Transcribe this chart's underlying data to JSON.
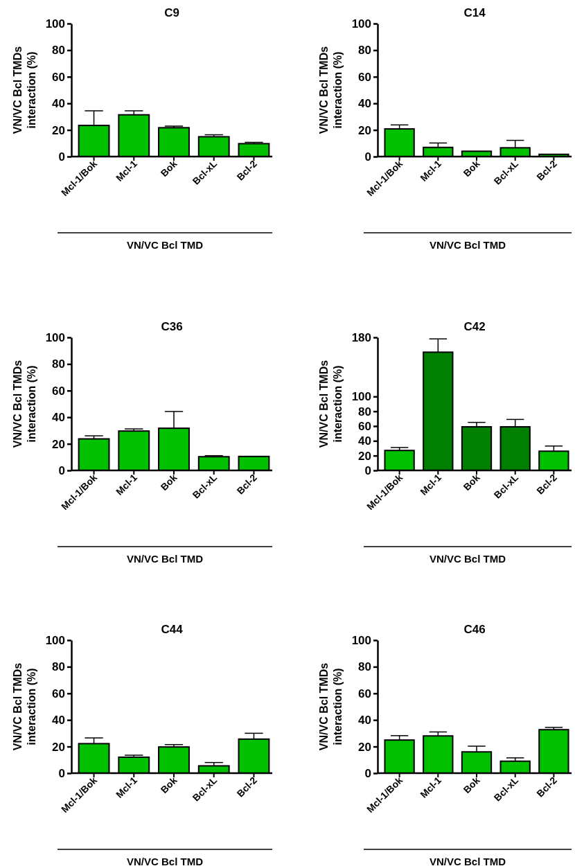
{
  "chart_data": [
    {
      "type": "bar",
      "title": "C9",
      "ylabel": "VN/VC Bcl TMDs interaction (%)",
      "xlabel": "VN/VC Bcl TMD",
      "categories": [
        "Mcl-1/Bok",
        "Mcl-1",
        "Bok",
        "Bcl-xL",
        "Bcl-2"
      ],
      "values": [
        23.4,
        31.4,
        21.7,
        14.9,
        9.7
      ],
      "errors": [
        11,
        3,
        1.2,
        1.5,
        1
      ],
      "colors": [
        "#00c000",
        "#00c000",
        "#00c000",
        "#00c000",
        "#00c000"
      ],
      "ylim": [
        0,
        100
      ],
      "yticks": [
        0,
        20,
        40,
        60,
        80,
        100
      ]
    },
    {
      "type": "bar",
      "title": "C14",
      "ylabel": "VN/VC Bcl TMDs interaction (%)",
      "xlabel": "VN/VC Bcl TMD",
      "categories": [
        "Mcl-1/Bok",
        "Mcl-1",
        "Bok",
        "Bcl-xL",
        "Bcl-2"
      ],
      "values": [
        20.8,
        6.9,
        4,
        6.6,
        1.7
      ],
      "errors": [
        3,
        3.3,
        null,
        5.6,
        null
      ],
      "colors": [
        "#00c000",
        "#00c000",
        "#00c000",
        "#00c000",
        "#00c000"
      ],
      "ylim": [
        0,
        100
      ],
      "yticks": [
        0,
        20,
        40,
        60,
        80,
        100
      ]
    },
    {
      "type": "bar",
      "title": "C36",
      "ylabel": "VN/VC Bcl TMDs interaction (%)",
      "xlabel": "VN/VC Bcl TMD",
      "categories": [
        "Mcl-1/Bok",
        "Mcl-1",
        "Bok",
        "Bcl-xL",
        "Bcl-2"
      ],
      "values": [
        23.7,
        29.6,
        31.7,
        10.3,
        10.5
      ],
      "errors": [
        2.3,
        1.6,
        12.6,
        0.8,
        null
      ],
      "colors": [
        "#00c000",
        "#00c000",
        "#00c000",
        "#00c000",
        "#00c000"
      ],
      "ylim": [
        0,
        100
      ],
      "yticks": [
        0,
        20,
        40,
        60,
        80,
        100
      ]
    },
    {
      "type": "bar",
      "title": "C42",
      "ylabel": "VN/VC Bcl TMDs interaction (%)",
      "xlabel": "VN/VC Bcl TMD",
      "categories": [
        "Mcl-1/Bok",
        "Mcl-1",
        "Bok",
        "Bcl-xL",
        "Bcl-2"
      ],
      "values": [
        27,
        160,
        59,
        59,
        26
      ],
      "errors": [
        4,
        18,
        6,
        10,
        7
      ],
      "colors": [
        "#00c000",
        "#007f00",
        "#007f00",
        "#007f00",
        "#00c000"
      ],
      "ylim": [
        0,
        180
      ],
      "yticks": [
        0,
        20,
        40,
        60,
        80,
        100,
        180
      ]
    },
    {
      "type": "bar",
      "title": "C44",
      "ylabel": "VN/VC Bcl TMDs interaction (%)",
      "xlabel": "VN/VC Bcl TMD",
      "categories": [
        "Mcl-1/Bok",
        "Mcl-1",
        "Bok",
        "Bcl-xL",
        "Bcl-2"
      ],
      "values": [
        22.2,
        12,
        19.7,
        5.5,
        25.6
      ],
      "errors": [
        4.3,
        1.5,
        1.8,
        2.5,
        4.4
      ],
      "colors": [
        "#00c000",
        "#00c000",
        "#00c000",
        "#00c000",
        "#00c000"
      ],
      "ylim": [
        0,
        100
      ],
      "yticks": [
        0,
        20,
        40,
        60,
        80,
        100
      ]
    },
    {
      "type": "bar",
      "title": "C46",
      "ylabel": "VN/VC Bcl TMDs interaction (%)",
      "xlabel": "VN/VC Bcl TMD",
      "categories": [
        "Mcl-1/Bok",
        "Mcl-1",
        "Bok",
        "Bcl-xL",
        "Bcl-2"
      ],
      "values": [
        24.9,
        28,
        16,
        9,
        32.7
      ],
      "errors": [
        3.3,
        3,
        4.3,
        2.5,
        1.7
      ],
      "colors": [
        "#00c000",
        "#00c000",
        "#00c000",
        "#00c000",
        "#00c000"
      ],
      "ylim": [
        0,
        100
      ],
      "yticks": [
        0,
        20,
        40,
        60,
        80,
        100
      ]
    }
  ]
}
